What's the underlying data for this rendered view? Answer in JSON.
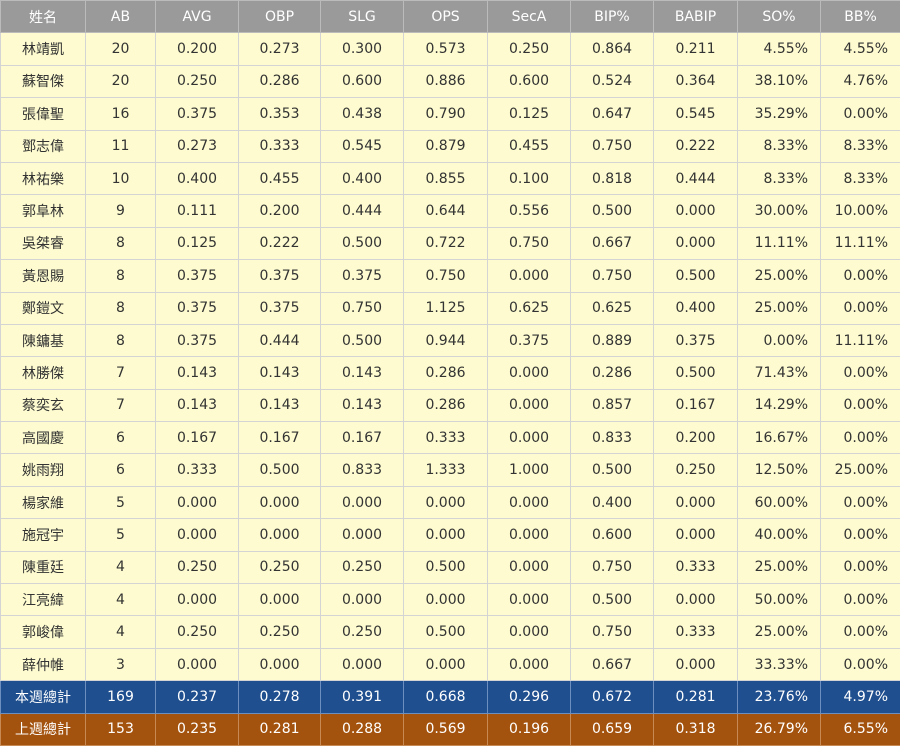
{
  "table": {
    "header": [
      "姓名",
      "AB",
      "AVG",
      "OBP",
      "SLG",
      "OPS",
      "SecA",
      "BIP%",
      "BABIP",
      "SO%",
      "BB%"
    ],
    "rows": [
      [
        "林靖凱",
        "20",
        "0.200",
        "0.273",
        "0.300",
        "0.573",
        "0.250",
        "0.864",
        "0.211",
        "4.55%",
        "4.55%"
      ],
      [
        "蘇智傑",
        "20",
        "0.250",
        "0.286",
        "0.600",
        "0.886",
        "0.600",
        "0.524",
        "0.364",
        "38.10%",
        "4.76%"
      ],
      [
        "張偉聖",
        "16",
        "0.375",
        "0.353",
        "0.438",
        "0.790",
        "0.125",
        "0.647",
        "0.545",
        "35.29%",
        "0.00%"
      ],
      [
        "鄧志偉",
        "11",
        "0.273",
        "0.333",
        "0.545",
        "0.879",
        "0.455",
        "0.750",
        "0.222",
        "8.33%",
        "8.33%"
      ],
      [
        "林祐樂",
        "10",
        "0.400",
        "0.455",
        "0.400",
        "0.855",
        "0.100",
        "0.818",
        "0.444",
        "8.33%",
        "8.33%"
      ],
      [
        "郭阜林",
        "9",
        "0.111",
        "0.200",
        "0.444",
        "0.644",
        "0.556",
        "0.500",
        "0.000",
        "30.00%",
        "10.00%"
      ],
      [
        "吳桀睿",
        "8",
        "0.125",
        "0.222",
        "0.500",
        "0.722",
        "0.750",
        "0.667",
        "0.000",
        "11.11%",
        "11.11%"
      ],
      [
        "黃恩賜",
        "8",
        "0.375",
        "0.375",
        "0.375",
        "0.750",
        "0.000",
        "0.750",
        "0.500",
        "25.00%",
        "0.00%"
      ],
      [
        "鄭鎧文",
        "8",
        "0.375",
        "0.375",
        "0.750",
        "1.125",
        "0.625",
        "0.625",
        "0.400",
        "25.00%",
        "0.00%"
      ],
      [
        "陳鏞基",
        "8",
        "0.375",
        "0.444",
        "0.500",
        "0.944",
        "0.375",
        "0.889",
        "0.375",
        "0.00%",
        "11.11%"
      ],
      [
        "林勝傑",
        "7",
        "0.143",
        "0.143",
        "0.143",
        "0.286",
        "0.000",
        "0.286",
        "0.500",
        "71.43%",
        "0.00%"
      ],
      [
        "蔡奕玄",
        "7",
        "0.143",
        "0.143",
        "0.143",
        "0.286",
        "0.000",
        "0.857",
        "0.167",
        "14.29%",
        "0.00%"
      ],
      [
        "高國慶",
        "6",
        "0.167",
        "0.167",
        "0.167",
        "0.333",
        "0.000",
        "0.833",
        "0.200",
        "16.67%",
        "0.00%"
      ],
      [
        "姚雨翔",
        "6",
        "0.333",
        "0.500",
        "0.833",
        "1.333",
        "1.000",
        "0.500",
        "0.250",
        "12.50%",
        "25.00%"
      ],
      [
        "楊家維",
        "5",
        "0.000",
        "0.000",
        "0.000",
        "0.000",
        "0.000",
        "0.400",
        "0.000",
        "60.00%",
        "0.00%"
      ],
      [
        "施冠宇",
        "5",
        "0.000",
        "0.000",
        "0.000",
        "0.000",
        "0.000",
        "0.600",
        "0.000",
        "40.00%",
        "0.00%"
      ],
      [
        "陳重廷",
        "4",
        "0.250",
        "0.250",
        "0.250",
        "0.500",
        "0.000",
        "0.750",
        "0.333",
        "25.00%",
        "0.00%"
      ],
      [
        "江亮緯",
        "4",
        "0.000",
        "0.000",
        "0.000",
        "0.000",
        "0.000",
        "0.500",
        "0.000",
        "50.00%",
        "0.00%"
      ],
      [
        "郭峻偉",
        "4",
        "0.250",
        "0.250",
        "0.250",
        "0.500",
        "0.000",
        "0.750",
        "0.333",
        "25.00%",
        "0.00%"
      ],
      [
        "薛仲帷",
        "3",
        "0.000",
        "0.000",
        "0.000",
        "0.000",
        "0.000",
        "0.667",
        "0.000",
        "33.33%",
        "0.00%"
      ]
    ],
    "totals": [
      [
        "本週總計",
        "169",
        "0.237",
        "0.278",
        "0.391",
        "0.668",
        "0.296",
        "0.672",
        "0.281",
        "23.76%",
        "4.97%"
      ],
      [
        "上週總計",
        "153",
        "0.235",
        "0.281",
        "0.288",
        "0.569",
        "0.196",
        "0.659",
        "0.318",
        "26.79%",
        "6.55%"
      ]
    ]
  }
}
